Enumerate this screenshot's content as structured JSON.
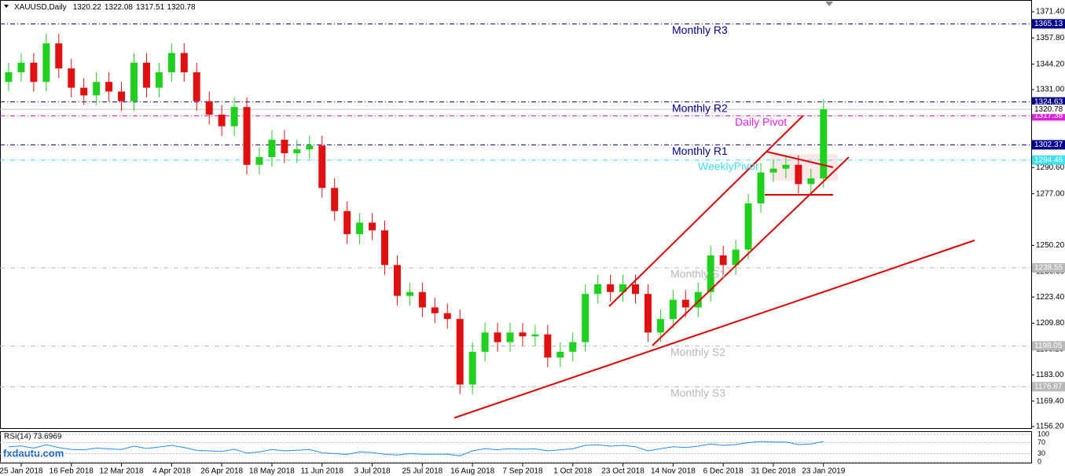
{
  "chart_data": {
    "type": "candlestick",
    "header": {
      "symbol": "XAUUSD,Daily",
      "ohlc": [
        1320.22,
        1322.08,
        1317.51,
        1320.78
      ]
    },
    "watermark": "fxdautu.com",
    "categories": [
      null,
      "25 Jan 2018",
      null,
      null,
      null,
      "16 Feb 2018",
      null,
      null,
      null,
      "12 Mar 2018",
      null,
      null,
      null,
      "4 Apr 2018",
      null,
      null,
      null,
      "26 Apr 2018",
      null,
      null,
      null,
      "18 May 2018",
      null,
      null,
      null,
      "11 Jun 2018",
      null,
      null,
      null,
      "3 Jul 2018",
      null,
      null,
      null,
      "25 Jul 2018",
      null,
      null,
      null,
      "16 Aug 2018",
      null,
      null,
      null,
      "7 Sep 2018",
      null,
      null,
      null,
      "1 Oct 2018",
      null,
      null,
      null,
      "23 Oct 2018",
      null,
      null,
      null,
      "14 Nov 2018",
      null,
      null,
      null,
      "6 Dec 2018",
      null,
      null,
      null,
      "31 Dec 2018",
      null,
      null,
      null,
      "23 Jan 2019"
    ],
    "open": [
      1335,
      1340,
      1345,
      1335,
      1355,
      1342,
      1332,
      1328,
      1335,
      1330,
      1325,
      1345,
      1332,
      1340,
      1350,
      1340,
      1325,
      1318,
      1312,
      1322,
      1292,
      1296,
      1305,
      1298,
      1300,
      1302,
      1280,
      1268,
      1256,
      1262,
      1258,
      1240,
      1224,
      1226,
      1218,
      1215,
      1212,
      1178,
      1195,
      1205,
      1200,
      1205,
      1203,
      1204,
      1192,
      1195,
      1200,
      1225,
      1230,
      1226,
      1230,
      1225,
      1205,
      1212,
      1222,
      1218,
      1226,
      1245,
      1240,
      1248,
      1272,
      1288,
      1290,
      1292,
      1282,
      1285
    ],
    "high": [
      1345,
      1350,
      1350,
      1360,
      1360,
      1347,
      1337,
      1340,
      1340,
      1335,
      1350,
      1350,
      1345,
      1355,
      1355,
      1345,
      1330,
      1323,
      1327,
      1327,
      1301,
      1310,
      1310,
      1305,
      1307,
      1307,
      1285,
      1273,
      1267,
      1267,
      1263,
      1245,
      1231,
      1231,
      1223,
      1220,
      1217,
      1200,
      1210,
      1210,
      1210,
      1210,
      1209,
      1209,
      1200,
      1205,
      1230,
      1235,
      1235,
      1235,
      1235,
      1230,
      1217,
      1227,
      1227,
      1231,
      1250,
      1250,
      1253,
      1277,
      1293,
      1295,
      1297,
      1297,
      1290,
      1326
    ],
    "low": [
      1330,
      1335,
      1330,
      1330,
      1337,
      1327,
      1323,
      1323,
      1325,
      1320,
      1320,
      1327,
      1327,
      1335,
      1335,
      1320,
      1313,
      1307,
      1307,
      1287,
      1287,
      1291,
      1293,
      1293,
      1295,
      1275,
      1263,
      1251,
      1251,
      1253,
      1235,
      1219,
      1219,
      1213,
      1210,
      1207,
      1173,
      1173,
      1190,
      1195,
      1195,
      1198,
      1198,
      1187,
      1187,
      1190,
      1195,
      1220,
      1221,
      1221,
      1220,
      1200,
      1200,
      1207,
      1213,
      1213,
      1221,
      1235,
      1235,
      1243,
      1267,
      1283,
      1285,
      1277,
      1277,
      1280
    ],
    "close": [
      1340,
      1345,
      1335,
      1355,
      1342,
      1332,
      1328,
      1335,
      1330,
      1325,
      1345,
      1332,
      1340,
      1350,
      1340,
      1325,
      1318,
      1312,
      1322,
      1292,
      1296,
      1305,
      1298,
      1300,
      1302,
      1280,
      1268,
      1256,
      1262,
      1258,
      1240,
      1224,
      1226,
      1218,
      1215,
      1212,
      1178,
      1195,
      1205,
      1200,
      1205,
      1203,
      1204,
      1192,
      1195,
      1200,
      1225,
      1230,
      1226,
      1230,
      1225,
      1205,
      1212,
      1222,
      1218,
      1226,
      1245,
      1240,
      1248,
      1272,
      1288,
      1290,
      1292,
      1282,
      1285,
      1320.78
    ],
    "up_color": "#1fd01f",
    "down_color": "#e01010",
    "ylim": [
      1155.4,
      1377.5
    ],
    "yticks": [
      {
        "value": 1371.4,
        "label": "1371.40"
      },
      {
        "value": 1357.8,
        "label": "1357.80"
      },
      {
        "value": 1344.2,
        "label": "1344.20"
      },
      {
        "value": 1331,
        "label": "1331.00"
      },
      {
        "value": 1290.6,
        "label": "1290.60"
      },
      {
        "value": 1277,
        "label": "1277.00"
      },
      {
        "value": 1250.2,
        "label": "1250.20"
      },
      {
        "value": 1236.6,
        "label": "1236.60"
      },
      {
        "value": 1223.4,
        "label": "1223.40"
      },
      {
        "value": 1209.8,
        "label": "1209.80"
      },
      {
        "value": 1196.2,
        "label": "1196.20"
      },
      {
        "value": 1183,
        "label": "1183.00"
      },
      {
        "value": 1169.4,
        "label": "1169.40"
      },
      {
        "value": 1156.2,
        "label": "1156.20"
      }
    ],
    "last_price": 1320.78,
    "levels": [
      {
        "name": "Monthly R3",
        "value": 1365.13,
        "color": "#00008b"
      },
      {
        "name": "Monthly R2",
        "value": 1324.63,
        "color": "#00008b"
      },
      {
        "name": "Daily Pivot",
        "value": 1317.38,
        "color": "#e020e0"
      },
      {
        "name": "Monthly R1",
        "value": 1302.37,
        "color": "#00008b"
      },
      {
        "name": "WeeklyPivot",
        "value": 1294.46,
        "color": "#40e0f0"
      },
      {
        "name": "Monthly S1",
        "value": 1238.55,
        "color": "#b8b8b8"
      },
      {
        "name": "Monthly S2",
        "value": 1198.05,
        "color": "#b8b8b8"
      },
      {
        "name": "Monthly S3",
        "value": 1176.87,
        "color": "#b8b8b8"
      }
    ],
    "rsi": {
      "label": "RSI(14) 73.6969",
      "color": "#1e90ff",
      "ylim": [
        0,
        100
      ],
      "yticks": [
        100,
        70,
        30,
        0
      ],
      "values": [
        55,
        58,
        50,
        62,
        52,
        45,
        44,
        50,
        47,
        45,
        57,
        49,
        54,
        60,
        52,
        42,
        40,
        38,
        46,
        32,
        36,
        45,
        40,
        42,
        45,
        33,
        30,
        27,
        36,
        34,
        28,
        25,
        30,
        28,
        28,
        28,
        22,
        40,
        48,
        44,
        48,
        46,
        47,
        40,
        44,
        48,
        60,
        62,
        57,
        60,
        55,
        40,
        48,
        55,
        52,
        57,
        65,
        60,
        63,
        70,
        74,
        72,
        72,
        63,
        65,
        73.7
      ]
    }
  }
}
